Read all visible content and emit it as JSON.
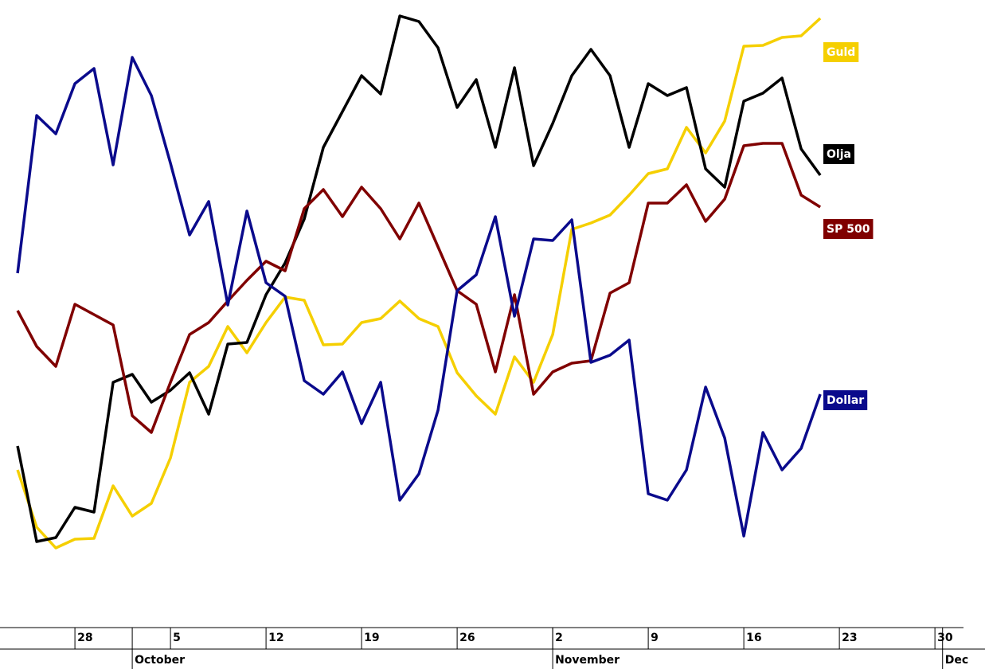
{
  "chart_data": {
    "type": "line",
    "xlim": [
      -0.92,
      50.62
    ],
    "ylim": [
      0,
      70
    ],
    "xticks": [
      {
        "value": 3,
        "label": "28"
      },
      {
        "value": 8,
        "label": "5"
      },
      {
        "value": 13,
        "label": "12"
      },
      {
        "value": 18,
        "label": "19"
      },
      {
        "value": 23,
        "label": "26"
      },
      {
        "value": 28,
        "label": "2"
      },
      {
        "value": 33,
        "label": "9"
      },
      {
        "value": 38,
        "label": "16"
      },
      {
        "value": 43,
        "label": "23"
      },
      {
        "value": 48,
        "label": "30"
      }
    ],
    "month_ticks": [
      {
        "value": 6,
        "label": "October"
      },
      {
        "value": 28,
        "label": "November"
      },
      {
        "value": 48.4,
        "label": "Dec"
      }
    ],
    "series": [
      {
        "name": "Guld",
        "color": "#f5cf00",
        "values": [
          13,
          5.8,
          3.2,
          4.3,
          4.4,
          11,
          7.2,
          8.8,
          14.5,
          24,
          26,
          31,
          27.7,
          31.5,
          34.7,
          34.3,
          28.7,
          28.8,
          31.5,
          32,
          34.2,
          32,
          31,
          25.2,
          22.3,
          20,
          27.2,
          24,
          30,
          43.2,
          44,
          45,
          47.5,
          50.2,
          50.8,
          56,
          52.8,
          56.8,
          66.2,
          66.3,
          67.3,
          67.5,
          69.7
        ]
      },
      {
        "name": "Olja",
        "color": "#000000",
        "values": [
          16,
          4,
          4.5,
          8.3,
          7.7,
          24,
          25,
          21.5,
          23,
          25.2,
          20,
          28.8,
          29,
          35,
          39,
          44.5,
          53.5,
          58,
          62.5,
          60.2,
          70,
          69.3,
          66,
          58.5,
          62,
          53.5,
          63.5,
          51.2,
          56.5,
          62.5,
          65.8,
          62.5,
          53.5,
          61.5,
          60,
          61,
          50.8,
          48.5,
          59.3,
          60.3,
          62.2,
          53.3,
          50
        ]
      },
      {
        "name": "SP 500",
        "color": "#800000",
        "values": [
          33,
          28.5,
          26,
          33.8,
          32.5,
          31.2,
          19.8,
          17.7,
          24,
          30,
          31.5,
          34.2,
          36.8,
          39.2,
          38,
          45.8,
          48.2,
          44.8,
          48.5,
          45.8,
          42,
          46.5,
          41,
          35.5,
          33.8,
          25.3,
          35,
          22.5,
          25.3,
          26.4,
          26.7,
          35.2,
          36.5,
          46.5,
          46.5,
          48.8,
          44.2,
          47,
          53.7,
          54,
          54,
          47.5,
          46
        ]
      },
      {
        "name": "Dollar",
        "color": "#0a0a8c",
        "values": [
          37.7,
          57.5,
          55.2,
          61.5,
          63.4,
          51.3,
          64.8,
          60,
          51.5,
          42.5,
          46.7,
          33.7,
          45.5,
          36.5,
          34.8,
          24.2,
          22.5,
          25.3,
          18.8,
          24,
          9.2,
          12.5,
          20.5,
          35.5,
          37.5,
          44.8,
          32.3,
          42,
          41.8,
          44.4,
          26.5,
          27.4,
          29.3,
          10,
          9.2,
          13,
          23.4,
          17,
          4.7,
          17.7,
          13,
          15.7,
          22.5
        ]
      }
    ]
  }
}
